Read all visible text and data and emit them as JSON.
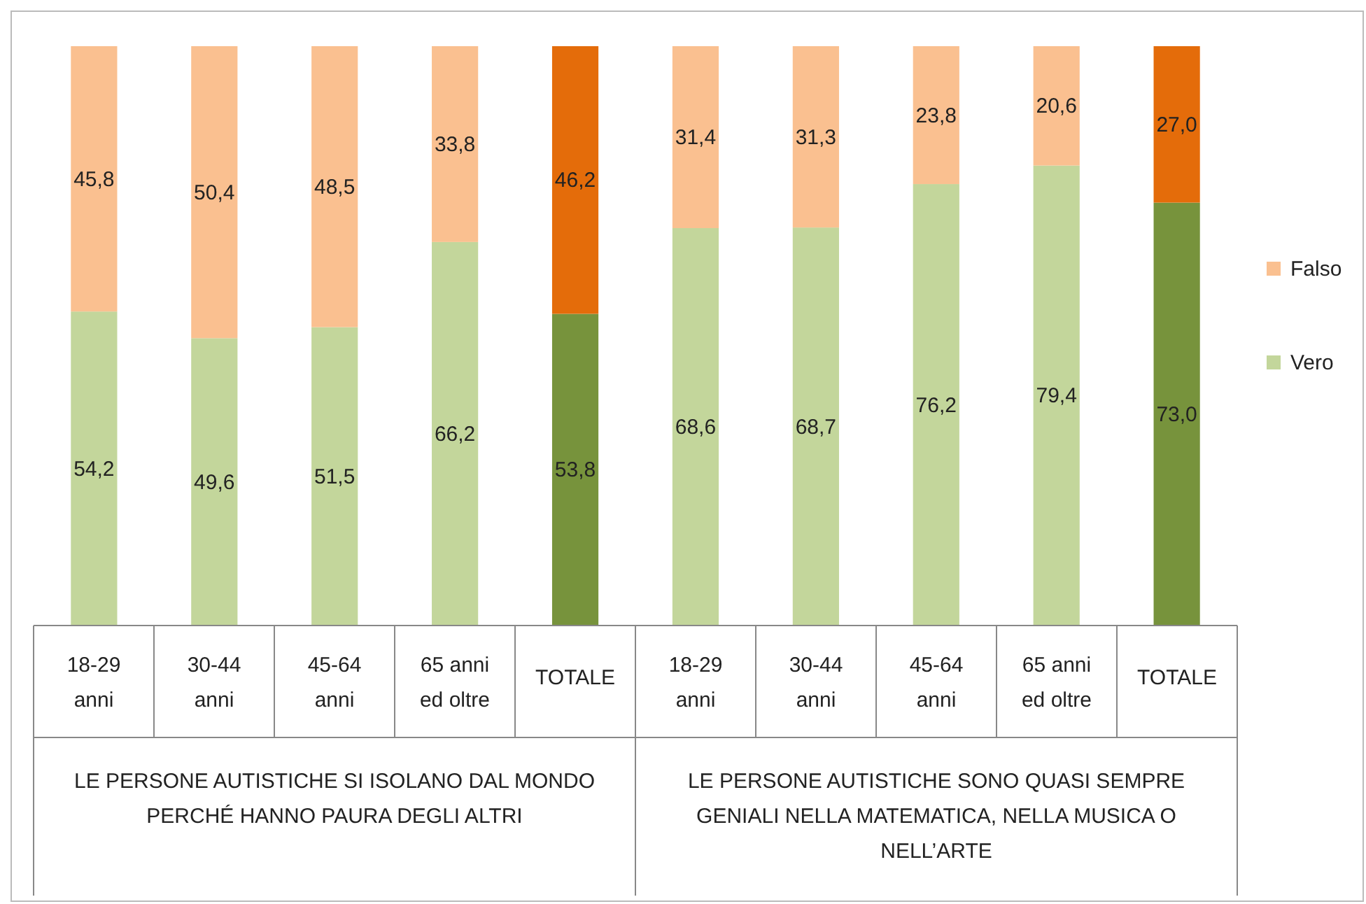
{
  "chart_data": {
    "type": "bar",
    "stacked": true,
    "data_labels": true,
    "legend": "right",
    "categories": [
      "18-29 anni",
      "30-44 anni",
      "45-64 anni",
      "65 anni ed oltre",
      "TOTALE",
      "18-29 anni",
      "30-44 anni",
      "45-64 anni",
      "65 anni ed oltre",
      "TOTALE"
    ],
    "series": [
      {
        "name": "Vero",
        "color": "#c3d69b",
        "colors": [
          "#c3d69b",
          "#c3d69b",
          "#c3d69b",
          "#c3d69b",
          "#77933c",
          "#c3d69b",
          "#c3d69b",
          "#c3d69b",
          "#c3d69b",
          "#77933c"
        ],
        "values": [
          54.2,
          49.6,
          51.5,
          66.2,
          53.8,
          68.6,
          68.7,
          76.2,
          79.4,
          73.0
        ],
        "value_labels": [
          "54,2",
          "49,6",
          "51,5",
          "66,2",
          "53,8",
          "68,6",
          "68,7",
          "76,2",
          "79,4",
          "73,0"
        ]
      },
      {
        "name": "Falso",
        "color": "#fac090",
        "colors": [
          "#fac090",
          "#fac090",
          "#fac090",
          "#fac090",
          "#e46c0a",
          "#fac090",
          "#fac090",
          "#fac090",
          "#fac090",
          "#e46c0a"
        ],
        "values": [
          45.8,
          50.4,
          48.5,
          33.8,
          46.2,
          31.4,
          31.3,
          23.8,
          20.6,
          27.0
        ],
        "value_labels": [
          "45,8",
          "50,4",
          "48,5",
          "33,8",
          "46,2",
          "31,4",
          "31,3",
          "23,8",
          "20,6",
          "27,0"
        ]
      }
    ],
    "annotations": [
      "LE PERSONE AUTISTICHE SI ISOLANO DAL MONDO PERCHÉ HANNO PAURA DEGLI ALTRI",
      "LE PERSONE AUTISTICHE SONO QUASI SEMPRE GENIALI NELLA MATEMATICA, NELLA MUSICA O NELL’ARTE"
    ]
  }
}
